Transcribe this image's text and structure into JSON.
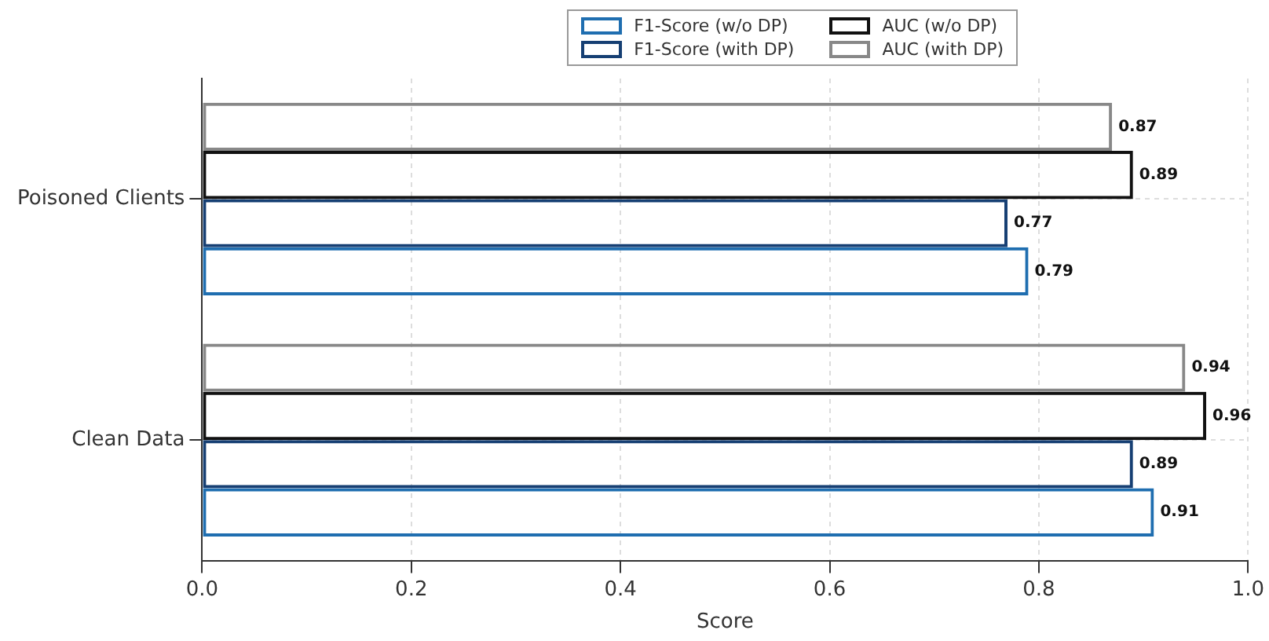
{
  "chart_data": {
    "type": "bar",
    "orientation": "horizontal",
    "xlabel": "Score",
    "categories": [
      "Poisoned Clients",
      "Clean Data"
    ],
    "series": [
      {
        "name": "F1-Score (w/o DP)",
        "color": "#1f6eb0",
        "values": [
          0.79,
          0.91
        ]
      },
      {
        "name": "F1-Score (with DP)",
        "color": "#163f73",
        "values": [
          0.77,
          0.89
        ]
      },
      {
        "name": "AUC (w/o DP)",
        "color": "#111111",
        "values": [
          0.89,
          0.96
        ]
      },
      {
        "name": "AUC (with DP)",
        "color": "#888888",
        "values": [
          0.87,
          0.94
        ]
      }
    ],
    "xlim": [
      0,
      1
    ],
    "xticks": [
      {
        "value": 0,
        "label": "0.0"
      },
      0.2,
      0.4,
      0.6,
      0.8,
      {
        "value": 1,
        "label": "1.0"
      }
    ],
    "data_labels": true,
    "grid": true,
    "legend": "top right"
  }
}
